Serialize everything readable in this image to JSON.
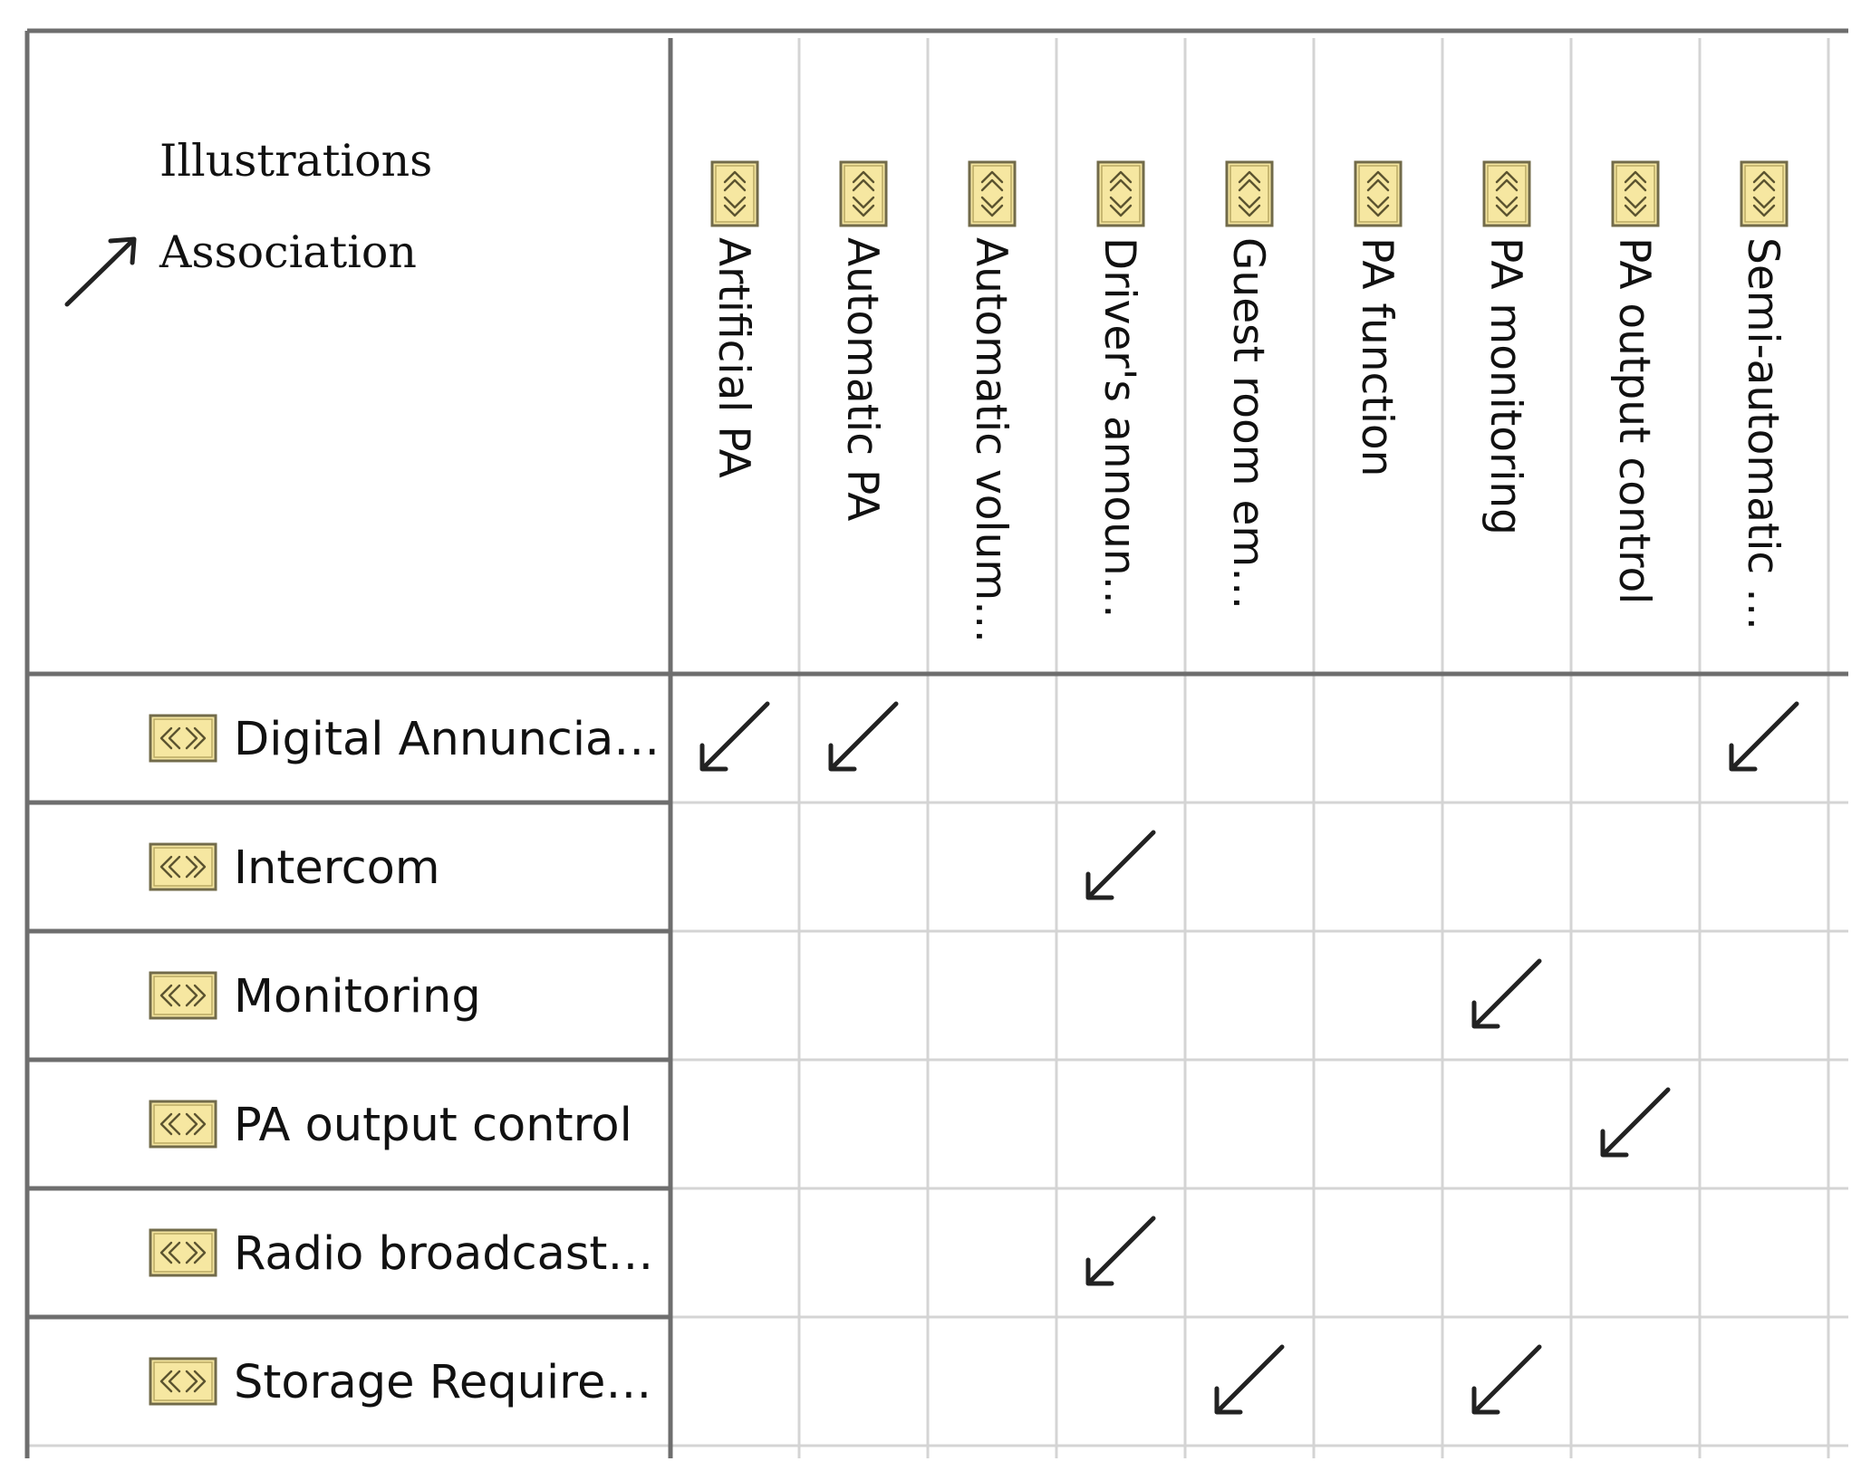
{
  "legend": {
    "title": "Illustrations",
    "entries": [
      {
        "label": "Association",
        "icon": "association-arrow-icon"
      }
    ]
  },
  "columns": [
    {
      "label": "Artificial PA",
      "icon": "stereotype-icon"
    },
    {
      "label": "Automatic PA",
      "icon": "stereotype-icon"
    },
    {
      "label": "Automatic volum…",
      "icon": "stereotype-icon"
    },
    {
      "label": "Driver's announ…",
      "icon": "stereotype-icon"
    },
    {
      "label": "Guest room em…",
      "icon": "stereotype-icon"
    },
    {
      "label": "PA function",
      "icon": "stereotype-icon"
    },
    {
      "label": "PA monitoring",
      "icon": "stereotype-icon"
    },
    {
      "label": "PA output control",
      "icon": "stereotype-icon"
    },
    {
      "label": "Semi-automatic …",
      "icon": "stereotype-icon"
    }
  ],
  "rows": [
    {
      "label": "Digital Annuncia…",
      "icon": "stereotype-icon"
    },
    {
      "label": "Intercom",
      "icon": "stereotype-icon"
    },
    {
      "label": "Monitoring",
      "icon": "stereotype-icon"
    },
    {
      "label": "PA output control",
      "icon": "stereotype-icon"
    },
    {
      "label": "Radio broadcast…",
      "icon": "stereotype-icon"
    },
    {
      "label": "Storage Require…",
      "icon": "stereotype-icon"
    }
  ],
  "relations": [
    {
      "row": "Digital Annuncia…",
      "column": "Artificial PA",
      "type": "Association"
    },
    {
      "row": "Digital Annuncia…",
      "column": "Automatic PA",
      "type": "Association"
    },
    {
      "row": "Digital Annuncia…",
      "column": "Semi-automatic …",
      "type": "Association"
    },
    {
      "row": "Intercom",
      "column": "Driver's announ…",
      "type": "Association"
    },
    {
      "row": "Monitoring",
      "column": "PA monitoring",
      "type": "Association"
    },
    {
      "row": "PA output control",
      "column": "PA output control",
      "type": "Association"
    },
    {
      "row": "Radio broadcast…",
      "column": "Driver's announ…",
      "type": "Association"
    },
    {
      "row": "Storage Require…",
      "column": "Guest room em…",
      "type": "Association"
    },
    {
      "row": "Storage Require…",
      "column": "PA monitoring",
      "type": "Association"
    }
  ]
}
